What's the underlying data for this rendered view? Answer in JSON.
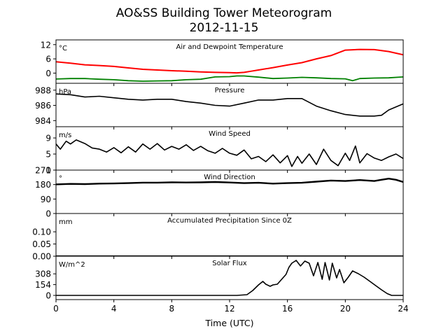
{
  "figure": {
    "title_line1": "AO&SS Building Tower Meteorogram",
    "title_line2": "2012-11-15",
    "xlabel": "Time (UTC)"
  },
  "chart_data": [
    {
      "type": "line",
      "title": "Air and Dewpoint Temperature",
      "unit": "°C",
      "xlim": [
        0,
        24
      ],
      "xticks": [
        0,
        4,
        8,
        12,
        16,
        20,
        24
      ],
      "ylim": [
        -4.3,
        14
      ],
      "yticks": [
        0,
        6,
        12
      ],
      "series": [
        {
          "color": "#ff0000",
          "width": 2,
          "x": [
            0,
            1,
            2,
            3,
            4,
            5,
            6,
            7,
            8,
            9,
            10,
            11,
            12,
            12.5,
            13,
            13.5,
            14,
            15,
            16,
            17,
            18,
            19,
            20,
            21,
            22,
            23,
            24
          ],
          "y": [
            4.8,
            4.2,
            3.5,
            3.2,
            2.8,
            2.2,
            1.6,
            1.3,
            1.0,
            0.8,
            0.5,
            0.3,
            0.2,
            0.1,
            0.3,
            0.8,
            1.3,
            2.3,
            3.4,
            4.4,
            6.0,
            7.4,
            9.7,
            10.0,
            9.9,
            9.1,
            7.7
          ]
        },
        {
          "color": "#008000",
          "width": 1.8,
          "x": [
            0,
            1,
            2,
            3,
            4,
            5,
            6,
            7,
            8,
            9,
            10,
            11,
            12,
            12.5,
            13,
            14,
            15,
            16,
            17,
            18,
            19,
            20,
            20.5,
            21,
            22,
            23,
            24
          ],
          "y": [
            -2.5,
            -2.3,
            -2.3,
            -2.6,
            -2.8,
            -3.2,
            -3.4,
            -3.3,
            -3.2,
            -2.8,
            -2.6,
            -1.6,
            -1.5,
            -1.2,
            -1.2,
            -1.7,
            -2.3,
            -2.1,
            -1.8,
            -2.0,
            -2.3,
            -2.4,
            -3.2,
            -2.3,
            -2.1,
            -2.0,
            -1.6
          ]
        }
      ]
    },
    {
      "type": "line",
      "title": "Pressure",
      "unit": "hPa",
      "xlim": [
        0,
        24
      ],
      "ylim": [
        983.2,
        988.9
      ],
      "yticks": [
        984,
        986,
        988
      ],
      "series": [
        {
          "color": "#000000",
          "width": 1.6,
          "x": [
            0,
            1,
            2,
            3,
            4,
            5,
            6,
            7,
            8,
            9,
            10,
            11,
            12,
            13,
            14,
            15,
            16,
            17,
            18,
            19,
            20,
            21,
            22,
            22.5,
            23,
            24
          ],
          "y": [
            987.5,
            987.4,
            987.1,
            987.2,
            987.0,
            986.8,
            986.7,
            986.8,
            986.8,
            986.5,
            986.3,
            986.0,
            985.9,
            986.3,
            986.7,
            986.7,
            986.9,
            986.9,
            985.9,
            985.3,
            984.8,
            984.6,
            984.6,
            984.7,
            985.4,
            986.2
          ]
        }
      ]
    },
    {
      "type": "line",
      "title": "Wind Speed",
      "unit": "m/s",
      "xlim": [
        0,
        24
      ],
      "ylim": [
        1,
        11.8
      ],
      "yticks": [
        1,
        5,
        9
      ],
      "series": [
        {
          "color": "#000000",
          "width": 1.6,
          "x": [
            0,
            0.3,
            0.7,
            1,
            1.4,
            2,
            2.5,
            3,
            3.5,
            4,
            4.5,
            5,
            5.5,
            6,
            6.5,
            7,
            7.5,
            8,
            8.5,
            9,
            9.5,
            10,
            10.5,
            11,
            11.5,
            12,
            12.5,
            13,
            13.5,
            14,
            14.5,
            15,
            15.5,
            16,
            16.3,
            16.7,
            17,
            17.5,
            18,
            18.5,
            19,
            19.5,
            20,
            20.3,
            20.7,
            21,
            21.5,
            22,
            22.5,
            23,
            23.5,
            24
          ],
          "y": [
            7.5,
            6.2,
            8.2,
            7.5,
            8.5,
            7.6,
            6.5,
            6.2,
            5.5,
            6.6,
            5.3,
            6.8,
            5.5,
            7.5,
            6.2,
            7.6,
            6.0,
            6.9,
            6.2,
            7.3,
            5.9,
            6.9,
            5.8,
            5.2,
            6.4,
            5.2,
            4.7,
            6.0,
            3.8,
            4.4,
            3.1,
            4.8,
            2.8,
            4.6,
            1.9,
            4.4,
            2.7,
            5.0,
            2.4,
            6.2,
            3.4,
            2.1,
            5.2,
            3.4,
            7.0,
            2.8,
            5.1,
            4.0,
            3.4,
            4.3,
            5.0,
            3.9
          ]
        }
      ]
    },
    {
      "type": "line",
      "title": "Wind Direction",
      "unit": "°",
      "xlim": [
        0,
        24
      ],
      "ylim": [
        0,
        270
      ],
      "yticks": [
        0,
        90,
        180,
        270
      ],
      "series": [
        {
          "color": "#000000",
          "width": 2.4,
          "x": [
            0,
            1,
            2,
            3,
            4,
            5,
            6,
            7,
            8,
            9,
            10,
            11,
            12,
            13,
            14,
            15,
            16,
            17,
            18,
            19,
            20,
            21,
            22,
            22.5,
            23,
            23.5,
            24
          ],
          "y": [
            181,
            184,
            183,
            186,
            187,
            189,
            192,
            192,
            194,
            193,
            194,
            196,
            193,
            189,
            191,
            186,
            189,
            191,
            198,
            205,
            202,
            208,
            202,
            210,
            217,
            210,
            196
          ]
        }
      ]
    },
    {
      "type": "line",
      "title": "Accumulated Precipitation Since 0Z",
      "unit": "mm",
      "xlim": [
        0,
        24
      ],
      "ylim": [
        0,
        0.175
      ],
      "yticks": [
        0,
        0.05,
        0.1
      ],
      "ytick_labels": [
        "0.00",
        "0.05",
        "0.10"
      ],
      "series": [
        {
          "color": "#000000",
          "width": 2.2,
          "x": [
            0,
            24
          ],
          "y": [
            0,
            0
          ]
        }
      ]
    },
    {
      "type": "line",
      "title": "Solar Flux",
      "unit": "W/m^2",
      "xlim": [
        0,
        24
      ],
      "ylim": [
        -60,
        560
      ],
      "yticks": [
        0,
        154,
        308
      ],
      "series": [
        {
          "color": "#000000",
          "width": 1.6,
          "x": [
            0,
            12.5,
            13.2,
            13.6,
            14.0,
            14.3,
            14.5,
            14.8,
            15.0,
            15.3,
            15.6,
            15.9,
            16.1,
            16.3,
            16.6,
            16.9,
            17.2,
            17.5,
            17.8,
            18.1,
            18.4,
            18.6,
            18.9,
            19.1,
            19.4,
            19.6,
            19.9,
            20.2,
            20.5,
            20.9,
            21.3,
            21.7,
            22.1,
            22.5,
            22.9,
            23.2,
            24
          ],
          "y": [
            0,
            0,
            10,
            70,
            150,
            200,
            160,
            130,
            150,
            160,
            230,
            300,
            400,
            460,
            500,
            420,
            490,
            460,
            280,
            470,
            230,
            470,
            220,
            460,
            250,
            370,
            180,
            260,
            350,
            310,
            260,
            200,
            140,
            80,
            25,
            0,
            0
          ]
        }
      ]
    }
  ]
}
